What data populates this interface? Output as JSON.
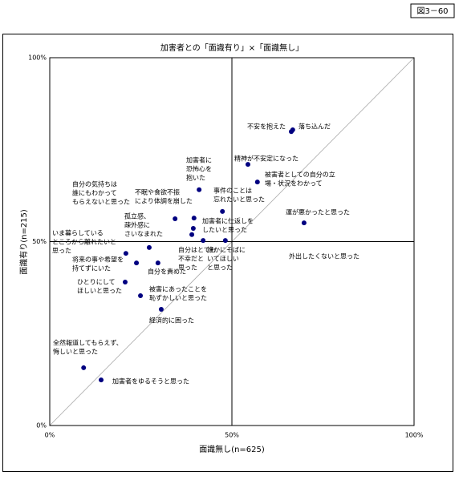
{
  "figure_tag": "図3－60",
  "chart_data": {
    "type": "scatter",
    "title": "加害者との「面識有り」×「面識無し」",
    "x_label": "面識無し(n=625)",
    "y_label": "面識有り(n=215)",
    "xlim": [
      0,
      100
    ],
    "ylim": [
      0,
      100
    ],
    "xticks": [
      {
        "value": 0,
        "label": "0%"
      },
      {
        "value": 50,
        "label": "50%"
      },
      {
        "value": 100,
        "label": "100%"
      }
    ],
    "yticks": [
      {
        "value": 0,
        "label": "0%"
      },
      {
        "value": 50,
        "label": "50%"
      },
      {
        "value": 100,
        "label": "100%"
      }
    ],
    "color": "#000080",
    "points": [
      {
        "label": [
          "不安を抱えた"
        ],
        "x": 66.3,
        "y": 79.9
      },
      {
        "label": [
          "落ち込んだ"
        ],
        "x": 66.7,
        "y": 80.4
      },
      {
        "label": [
          "精神が不安定になった"
        ],
        "x": 54.4,
        "y": 71.0
      },
      {
        "label": [
          "被害者としての自分の立",
          "場・状況をわかって"
        ],
        "x": 57.0,
        "y": 66.2
      },
      {
        "label": [
          "運が悪かったと思った"
        ],
        "x": 69.8,
        "y": 55.1
      },
      {
        "label": [
          "加害者に",
          "恐怖心を",
          "抱いた"
        ],
        "x": 41.0,
        "y": 64.1
      },
      {
        "label": [
          "事件のことは",
          "忘れたいと思った"
        ],
        "x": 47.4,
        "y": 58.2
      },
      {
        "label": [
          "不眠や食欲不振",
          "により体調を崩した"
        ],
        "x": 34.4,
        "y": 56.2
      },
      {
        "label": [
          "孤立感、",
          "疎外感に",
          "さいなまれた"
        ],
        "x": 39.4,
        "y": 53.6
      },
      {
        "label": [
          "加害者に仕返しを",
          "したいと思った"
        ],
        "x": 39.6,
        "y": 56.4
      },
      {
        "label": [
          "自分はとても",
          "不幸だと",
          "思った"
        ],
        "x": 39.0,
        "y": 51.9
      },
      {
        "label": [
          "誰かにそばに",
          "いてほしい",
          "と思った"
        ],
        "x": 48.2,
        "y": 50.3
      },
      {
        "label": [
          "外出したくないと思った"
        ],
        "x": 42.1,
        "y": 50.3
      },
      {
        "label": [
          "自分の気持ちは",
          "誰にもわかって",
          "もらえないと思った"
        ],
        "x": 27.3,
        "y": 48.4
      },
      {
        "label": [
          "いま暮らしている",
          "ところから離れたいと",
          "思った"
        ],
        "x": 20.9,
        "y": 46.8
      },
      {
        "label": [
          "将来の事や希望を",
          "持てずにいた"
        ],
        "x": 23.8,
        "y": 44.2
      },
      {
        "label": [
          "自分を責めた"
        ],
        "x": 29.7,
        "y": 44.2
      },
      {
        "label": [
          "ひとりにして",
          "ほしいと思った"
        ],
        "x": 20.7,
        "y": 39.0
      },
      {
        "label": [
          "被害にあったことを",
          "恥ずかしいと思った"
        ],
        "x": 24.9,
        "y": 35.3
      },
      {
        "label": [
          "経済的に困った"
        ],
        "x": 30.6,
        "y": 31.6
      },
      {
        "label": [
          "全然報道してもらえず、",
          "悔しいと思った"
        ],
        "x": 9.3,
        "y": 15.7
      },
      {
        "label": [
          "加害者をゆるそうと思った"
        ],
        "x": 14.1,
        "y": 12.4
      }
    ]
  }
}
